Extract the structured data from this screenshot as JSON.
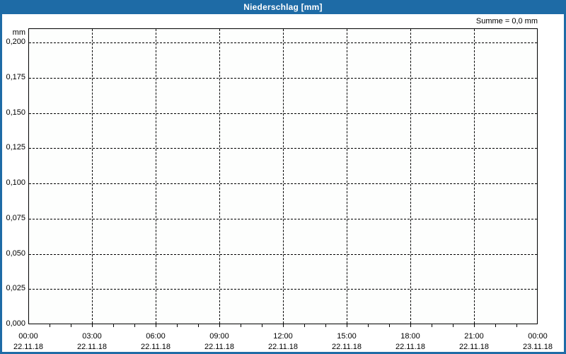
{
  "title_bar": {
    "title": "Niederschlag [mm]"
  },
  "summary": {
    "text": "Summe = 0,0 mm"
  },
  "axes": {
    "y_unit": "mm",
    "y_ticks": [
      {
        "label": "0,200",
        "value": 0.2
      },
      {
        "label": "0,175",
        "value": 0.175
      },
      {
        "label": "0,150",
        "value": 0.15
      },
      {
        "label": "0,125",
        "value": 0.125
      },
      {
        "label": "0,100",
        "value": 0.1
      },
      {
        "label": "0,075",
        "value": 0.075
      },
      {
        "label": "0,050",
        "value": 0.05
      },
      {
        "label": "0,025",
        "value": 0.025
      },
      {
        "label": "0,000",
        "value": 0.0
      }
    ],
    "x_ticks": [
      {
        "time": "00:00",
        "date": "22.11.18",
        "hour": 0
      },
      {
        "time": "03:00",
        "date": "22.11.18",
        "hour": 3
      },
      {
        "time": "06:00",
        "date": "22.11.18",
        "hour": 6
      },
      {
        "time": "09:00",
        "date": "22.11.18",
        "hour": 9
      },
      {
        "time": "12:00",
        "date": "22.11.18",
        "hour": 12
      },
      {
        "time": "15:00",
        "date": "22.11.18",
        "hour": 15
      },
      {
        "time": "18:00",
        "date": "22.11.18",
        "hour": 18
      },
      {
        "time": "21:00",
        "date": "22.11.18",
        "hour": 21
      },
      {
        "time": "00:00",
        "date": "23.11.18",
        "hour": 24
      }
    ],
    "x_minor_tick_hours": 1
  },
  "colors": {
    "accent": "#1e6ba6",
    "title_text": "#ffffff",
    "plot_border": "#000000",
    "grid": "#000000",
    "text": "#000000",
    "background": "#ffffff",
    "plot_background": "#fdfefd"
  },
  "chart_data": {
    "type": "bar",
    "title": "Niederschlag [mm]",
    "xlabel": "",
    "ylabel": "mm",
    "ylim": [
      0,
      0.2
    ],
    "y_tick_step": 0.025,
    "x_hours_range": [
      0,
      24
    ],
    "x_major_tick_hours": 3,
    "x_minor_tick_hours": 1,
    "x_start": "22.11.18 00:00",
    "x_end": "23.11.18 00:00",
    "grid": "dashed",
    "legend": "none",
    "series": [
      {
        "name": "Niederschlag",
        "values": []
      }
    ],
    "annotation": "Summe = 0,0 mm",
    "sum_value_mm": 0.0
  }
}
